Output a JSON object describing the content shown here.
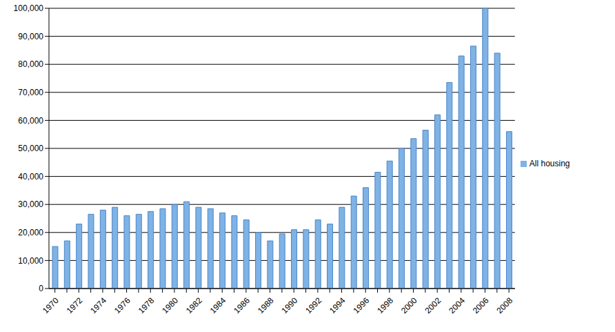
{
  "chart_data": {
    "type": "bar",
    "categories": [
      "1970",
      null,
      "1972",
      null,
      "1974",
      null,
      "1976",
      null,
      "1978",
      null,
      "1980",
      null,
      "1982",
      null,
      "1984",
      null,
      "1986",
      null,
      "1988",
      null,
      "1990",
      null,
      "1992",
      null,
      "1994",
      null,
      "1996",
      null,
      "1998",
      null,
      "2000",
      null,
      "2002",
      null,
      "2004",
      null,
      "2006",
      null,
      "2008"
    ],
    "series": [
      {
        "name": "All housing",
        "color": "#7fb2e5",
        "values": [
          15000,
          17000,
          23000,
          26500,
          28000,
          29000,
          26000,
          26500,
          27500,
          28500,
          30000,
          31000,
          29000,
          28500,
          27000,
          26000,
          24500,
          20000,
          17000,
          19500,
          21000,
          21000,
          24500,
          23000,
          29000,
          33000,
          36000,
          41500,
          45500,
          50000,
          53500,
          56500,
          62000,
          73500,
          83000,
          86500,
          100000,
          84000,
          56000
        ]
      }
    ],
    "ylim": [
      0,
      100000
    ],
    "yticks": [
      0,
      {
        "value": 10000,
        "label": "10,000"
      },
      {
        "value": 20000,
        "label": "20,000"
      },
      {
        "value": 30000,
        "label": "30,000"
      },
      {
        "value": 40000,
        "label": "40,000"
      },
      {
        "value": 50000,
        "label": "50,000"
      },
      {
        "value": 60000,
        "label": "60,000"
      },
      {
        "value": 70000,
        "label": "70,000"
      },
      {
        "value": 80000,
        "label": "80,000"
      },
      {
        "value": 90000,
        "label": "90,000"
      },
      {
        "value": 100000,
        "label": "100,000"
      }
    ],
    "grid": true,
    "legend": "right"
  }
}
